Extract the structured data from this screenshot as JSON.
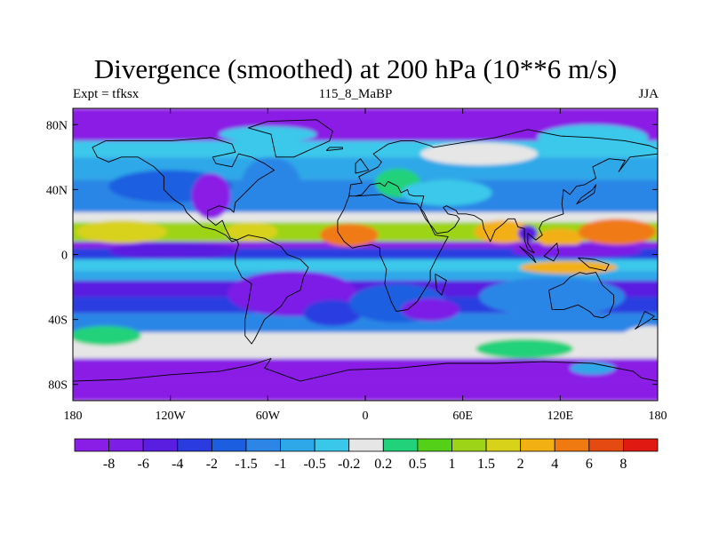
{
  "title": "Divergence (smoothed) at 200 hPa (10**6 m/s)",
  "left_label": "Expt = tfksx",
  "center_label": "115_8_MaBP",
  "right_label": "JJA",
  "map": {
    "lon_range": [
      -180,
      180
    ],
    "lat_range": [
      -90,
      90
    ],
    "x_ticks": [
      {
        "value": -180,
        "label": "180"
      },
      {
        "value": -120,
        "label": "120W"
      },
      {
        "value": -60,
        "label": "60W"
      },
      {
        "value": 0,
        "label": "0"
      },
      {
        "value": 60,
        "label": "60E"
      },
      {
        "value": 120,
        "label": "120E"
      },
      {
        "value": 180,
        "label": "180"
      }
    ],
    "y_ticks": [
      {
        "value": 80,
        "label": "80N"
      },
      {
        "value": 40,
        "label": "40N"
      },
      {
        "value": 0,
        "label": "0"
      },
      {
        "value": -40,
        "label": "40S"
      },
      {
        "value": -80,
        "label": "80S"
      }
    ],
    "bands": [
      {
        "lat": [
          -90,
          -78
        ],
        "level": 0
      },
      {
        "lat": [
          -78,
          -64
        ],
        "level": 0
      },
      {
        "lat": [
          -64,
          -48
        ],
        "level": 8
      },
      {
        "lat": [
          -48,
          -36
        ],
        "level": -3
      },
      {
        "lat": [
          -36,
          -26
        ],
        "level": -5
      },
      {
        "lat": [
          -26,
          -16
        ],
        "level": -6
      },
      {
        "lat": [
          -16,
          -10
        ],
        "level": -2
      },
      {
        "lat": [
          -10,
          -3
        ],
        "level": 7
      },
      {
        "lat": [
          -3,
          4
        ],
        "level": -5
      },
      {
        "lat": [
          4,
          8
        ],
        "level": 0
      },
      {
        "lat": [
          8,
          20
        ],
        "level": 11
      },
      {
        "lat": [
          20,
          26
        ],
        "level": 8
      },
      {
        "lat": [
          26,
          46
        ],
        "level": -3
      },
      {
        "lat": [
          46,
          60
        ],
        "level": -2
      },
      {
        "lat": [
          60,
          70
        ],
        "level": 7
      },
      {
        "lat": [
          70,
          90
        ],
        "level": 0
      }
    ],
    "blobs": [
      {
        "lon": -120,
        "lat": 42,
        "rlon": 38,
        "rlat": 10,
        "level": -4
      },
      {
        "lon": -118,
        "lat": 2,
        "rlon": 40,
        "rlat": 5,
        "level": -6
      },
      {
        "lon": -150,
        "lat": 14,
        "rlon": 28,
        "rlat": 7,
        "level": 12
      },
      {
        "lon": -160,
        "lat": -50,
        "rlon": 22,
        "rlat": 6,
        "level": 9
      },
      {
        "lon": -70,
        "lat": 14,
        "rlon": 16,
        "rlat": 6,
        "level": 12
      },
      {
        "lon": -95,
        "lat": 36,
        "rlon": 12,
        "rlat": 14,
        "level": 0
      },
      {
        "lon": -58,
        "lat": 44,
        "rlon": 18,
        "rlat": 16,
        "level": -3
      },
      {
        "lon": -45,
        "lat": -24,
        "rlon": 40,
        "rlat": 14,
        "level": -7
      },
      {
        "lon": -20,
        "lat": -36,
        "rlon": 18,
        "rlat": 8,
        "level": -5
      },
      {
        "lon": 20,
        "lat": -30,
        "rlon": 30,
        "rlat": 12,
        "level": -4
      },
      {
        "lon": 40,
        "lat": -34,
        "rlon": 18,
        "rlat": 7,
        "level": -7
      },
      {
        "lon": -10,
        "lat": 12,
        "rlon": 18,
        "rlat": 7,
        "level": 14
      },
      {
        "lon": 20,
        "lat": 44,
        "rlon": 14,
        "rlat": 9,
        "level": 9
      },
      {
        "lon": 50,
        "lat": 38,
        "rlon": 28,
        "rlat": 8,
        "level": 7
      },
      {
        "lon": 85,
        "lat": 14,
        "rlon": 18,
        "rlat": 7,
        "level": 13
      },
      {
        "lon": 100,
        "lat": 13,
        "rlon": 6,
        "rlat": 5,
        "level": -6
      },
      {
        "lon": 120,
        "lat": 10,
        "rlon": 14,
        "rlat": 6,
        "level": 13
      },
      {
        "lon": 155,
        "lat": 14,
        "rlon": 24,
        "rlat": 8,
        "level": 14
      },
      {
        "lon": 125,
        "lat": -8,
        "rlon": 30,
        "rlat": 4,
        "level": 13
      },
      {
        "lon": 130,
        "lat": 2,
        "rlon": 40,
        "rlat": 4,
        "level": -7
      },
      {
        "lon": 115,
        "lat": -26,
        "rlon": 45,
        "rlat": 12,
        "level": -3
      },
      {
        "lon": 70,
        "lat": 62,
        "rlon": 36,
        "rlat": 7,
        "level": 8
      },
      {
        "lon": 140,
        "lat": 72,
        "rlon": 34,
        "rlat": 8,
        "level": 7
      },
      {
        "lon": 175,
        "lat": -52,
        "rlon": 18,
        "rlat": 8,
        "level": 8
      },
      {
        "lon": 98,
        "lat": -58,
        "rlon": 30,
        "rlat": 6,
        "level": 9
      },
      {
        "lon": 140,
        "lat": -70,
        "rlon": 14,
        "rlat": 4,
        "level": -2
      },
      {
        "lon": -60,
        "lat": 74,
        "rlon": 30,
        "rlat": 5,
        "level": 7
      }
    ],
    "coastlines": [
      [
        [
          -168,
          66
        ],
        [
          -160,
          70
        ],
        [
          -140,
          70
        ],
        [
          -120,
          70
        ],
        [
          -95,
          72
        ],
        [
          -82,
          68
        ],
        [
          -80,
          63
        ],
        [
          -94,
          60
        ],
        [
          -92,
          56
        ],
        [
          -82,
          54
        ],
        [
          -78,
          62
        ],
        [
          -70,
          60
        ],
        [
          -62,
          56
        ],
        [
          -56,
          52
        ],
        [
          -66,
          46
        ],
        [
          -70,
          42
        ],
        [
          -76,
          36
        ],
        [
          -80,
          32
        ],
        [
          -81,
          26
        ],
        [
          -83,
          28
        ],
        [
          -90,
          30
        ],
        [
          -97,
          27
        ],
        [
          -97,
          22
        ],
        [
          -92,
          18
        ],
        [
          -88,
          21
        ],
        [
          -86,
          16
        ],
        [
          -83,
          10
        ],
        [
          -79,
          9
        ],
        [
          -82,
          8
        ],
        [
          -86,
          12
        ],
        [
          -92,
          15
        ],
        [
          -100,
          17
        ],
        [
          -106,
          22
        ],
        [
          -110,
          26
        ],
        [
          -112,
          30
        ],
        [
          -118,
          34
        ],
        [
          -124,
          40
        ],
        [
          -124,
          48
        ],
        [
          -130,
          54
        ],
        [
          -140,
          60
        ],
        [
          -150,
          60
        ],
        [
          -158,
          57
        ],
        [
          -165,
          60
        ],
        [
          -168,
          66
        ]
      ],
      [
        [
          -79,
          9
        ],
        [
          -72,
          12
        ],
        [
          -62,
          10
        ],
        [
          -52,
          5
        ],
        [
          -48,
          0
        ],
        [
          -40,
          -3
        ],
        [
          -35,
          -8
        ],
        [
          -38,
          -14
        ],
        [
          -40,
          -22
        ],
        [
          -48,
          -26
        ],
        [
          -52,
          -32
        ],
        [
          -57,
          -36
        ],
        [
          -62,
          -40
        ],
        [
          -65,
          -46
        ],
        [
          -68,
          -52
        ],
        [
          -70,
          -55
        ],
        [
          -74,
          -50
        ],
        [
          -74,
          -40
        ],
        [
          -72,
          -30
        ],
        [
          -70,
          -18
        ],
        [
          -76,
          -14
        ],
        [
          -80,
          -6
        ],
        [
          -80,
          0
        ],
        [
          -78,
          6
        ],
        [
          -79,
          9
        ]
      ],
      [
        [
          -10,
          36
        ],
        [
          -5,
          36
        ],
        [
          10,
          37
        ],
        [
          20,
          32
        ],
        [
          32,
          31
        ],
        [
          36,
          26
        ],
        [
          43,
          12
        ],
        [
          51,
          11
        ],
        [
          44,
          -2
        ],
        [
          40,
          -10
        ],
        [
          40,
          -16
        ],
        [
          35,
          -24
        ],
        [
          32,
          -29
        ],
        [
          26,
          -34
        ],
        [
          19,
          -35
        ],
        [
          16,
          -29
        ],
        [
          12,
          -18
        ],
        [
          13,
          -9
        ],
        [
          9,
          0
        ],
        [
          9,
          4
        ],
        [
          4,
          6
        ],
        [
          -4,
          5
        ],
        [
          -8,
          4
        ],
        [
          -13,
          8
        ],
        [
          -17,
          14
        ],
        [
          -17,
          21
        ],
        [
          -13,
          28
        ],
        [
          -10,
          36
        ]
      ],
      [
        [
          -10,
          36
        ],
        [
          -9,
          43
        ],
        [
          -2,
          44
        ],
        [
          -4,
          48
        ],
        [
          2,
          51
        ],
        [
          8,
          54
        ],
        [
          10,
          57
        ],
        [
          5,
          62
        ],
        [
          14,
          68
        ],
        [
          22,
          70
        ],
        [
          30,
          70
        ],
        [
          40,
          67
        ],
        [
          42,
          66
        ],
        [
          60,
          69
        ],
        [
          80,
          72
        ],
        [
          100,
          77
        ],
        [
          120,
          73
        ],
        [
          140,
          72
        ],
        [
          160,
          70
        ],
        [
          175,
          67
        ],
        [
          180,
          65
        ]
      ],
      [
        [
          180,
          62
        ],
        [
          163,
          60
        ],
        [
          156,
          51
        ],
        [
          160,
          58
        ],
        [
          150,
          59
        ],
        [
          140,
          54
        ],
        [
          142,
          47
        ],
        [
          135,
          43
        ],
        [
          130,
          42
        ],
        [
          126,
          37
        ],
        [
          122,
          40
        ],
        [
          121,
          31
        ],
        [
          122,
          25
        ],
        [
          113,
          22
        ],
        [
          109,
          20
        ],
        [
          107,
          16
        ],
        [
          109,
          12
        ],
        [
          105,
          9
        ],
        [
          100,
          13
        ],
        [
          100,
          7
        ],
        [
          104,
          1
        ],
        [
          100,
          3
        ],
        [
          98,
          9
        ],
        [
          98,
          16
        ],
        [
          94,
          17
        ],
        [
          92,
          22
        ],
        [
          88,
          22
        ],
        [
          85,
          19
        ],
        [
          80,
          15
        ],
        [
          77,
          8
        ],
        [
          73,
          16
        ],
        [
          72,
          21
        ],
        [
          67,
          24
        ],
        [
          62,
          25
        ],
        [
          57,
          25
        ],
        [
          56,
          27
        ],
        [
          50,
          30
        ],
        [
          48,
          29
        ],
        [
          51,
          25
        ],
        [
          56,
          24
        ],
        [
          58,
          22
        ],
        [
          55,
          17
        ],
        [
          51,
          14
        ],
        [
          44,
          13
        ],
        [
          42,
          16
        ],
        [
          37,
          22
        ],
        [
          34,
          28
        ],
        [
          35,
          32
        ],
        [
          36,
          36
        ],
        [
          30,
          36
        ],
        [
          27,
          37
        ],
        [
          26,
          40
        ],
        [
          22,
          38
        ],
        [
          20,
          42
        ],
        [
          14,
          45
        ],
        [
          12,
          42
        ],
        [
          9,
          44
        ],
        [
          3,
          43
        ],
        [
          -2,
          37
        ],
        [
          -6,
          36
        ]
      ],
      [
        [
          113,
          -22
        ],
        [
          115,
          -34
        ],
        [
          122,
          -34
        ],
        [
          131,
          -31
        ],
        [
          138,
          -35
        ],
        [
          141,
          -38
        ],
        [
          146,
          -39
        ],
        [
          150,
          -37
        ],
        [
          153,
          -30
        ],
        [
          153,
          -25
        ],
        [
          146,
          -19
        ],
        [
          142,
          -11
        ],
        [
          136,
          -12
        ],
        [
          132,
          -11
        ],
        [
          126,
          -14
        ],
        [
          122,
          -18
        ],
        [
          113,
          -22
        ]
      ],
      [
        [
          -180,
          -78
        ],
        [
          -150,
          -77
        ],
        [
          -120,
          -74
        ],
        [
          -90,
          -72
        ],
        [
          -70,
          -68
        ],
        [
          -58,
          -64
        ],
        [
          -62,
          -70
        ],
        [
          -40,
          -78
        ],
        [
          -10,
          -71
        ],
        [
          20,
          -70
        ],
        [
          50,
          -67
        ],
        [
          80,
          -67
        ],
        [
          110,
          -66
        ],
        [
          140,
          -67
        ],
        [
          165,
          -72
        ],
        [
          170,
          -76
        ],
        [
          180,
          -78
        ]
      ],
      [
        [
          -55,
          60
        ],
        [
          -44,
          60
        ],
        [
          -22,
          70
        ],
        [
          -20,
          76
        ],
        [
          -30,
          83
        ],
        [
          -60,
          82
        ],
        [
          -72,
          78
        ],
        [
          -58,
          74
        ],
        [
          -55,
          60
        ]
      ],
      [
        [
          -6,
          50
        ],
        [
          2,
          52
        ],
        [
          -3,
          59
        ],
        [
          -6,
          56
        ],
        [
          -6,
          50
        ]
      ],
      [
        [
          130,
          31
        ],
        [
          135,
          34
        ],
        [
          141,
          38
        ],
        [
          142,
          43
        ],
        [
          140,
          40
        ],
        [
          133,
          35
        ],
        [
          130,
          31
        ]
      ],
      [
        [
          43,
          -12
        ],
        [
          50,
          -16
        ],
        [
          47,
          -25
        ],
        [
          44,
          -22
        ],
        [
          43,
          -12
        ]
      ],
      [
        [
          166,
          -46
        ],
        [
          174,
          -41
        ],
        [
          178,
          -38
        ],
        [
          172,
          -35
        ],
        [
          168,
          -44
        ],
        [
          166,
          -46
        ]
      ],
      [
        [
          95,
          5
        ],
        [
          105,
          -5
        ],
        [
          103,
          -1
        ],
        [
          95,
          5
        ]
      ],
      [
        [
          110,
          -1
        ],
        [
          118,
          7
        ],
        [
          119,
          1
        ],
        [
          116,
          -4
        ],
        [
          110,
          -1
        ]
      ],
      [
        [
          131,
          -2
        ],
        [
          141,
          -3
        ],
        [
          150,
          -6
        ],
        [
          148,
          -10
        ],
        [
          138,
          -8
        ],
        [
          131,
          -2
        ]
      ],
      [
        [
          -24,
          64
        ],
        [
          -14,
          65
        ],
        [
          -14,
          66
        ],
        [
          -22,
          66
        ],
        [
          -24,
          64
        ]
      ]
    ]
  },
  "colorbar": {
    "colors": [
      "#8a1ee6",
      "#7c1ee6",
      "#5a1ee0",
      "#2a3ce0",
      "#1b5fe0",
      "#2b86e6",
      "#2ea8e8",
      "#3ac8ea",
      "#e6e6e6",
      "#22d27a",
      "#54d018",
      "#9ed418",
      "#d8d21a",
      "#f2b012",
      "#f07a12",
      "#e44a12",
      "#e01a12"
    ],
    "labels": [
      "-8",
      "-6",
      "-4",
      "-2",
      "-1.5",
      "-1",
      "-0.5",
      "-0.2",
      "0.2",
      "0.5",
      "1",
      "1.5",
      "2",
      "4",
      "6",
      "8"
    ]
  }
}
